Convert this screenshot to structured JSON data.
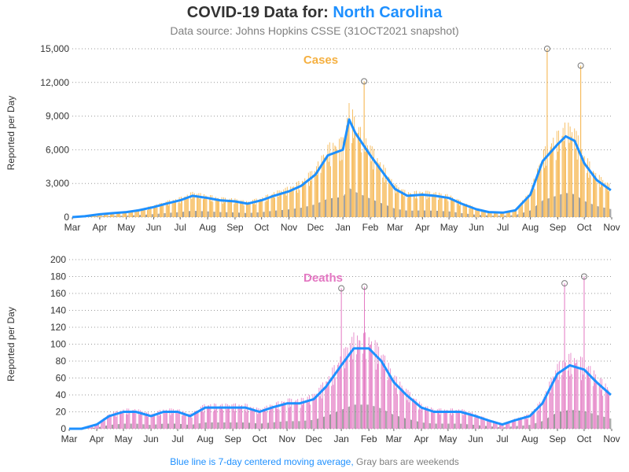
{
  "title": {
    "prefix": "COVID-19 Data for:",
    "state": "North Carolina"
  },
  "subtitle": "Data source: Johns Hopkins CSSE (31OCT2021 snapshot)",
  "footnote": {
    "blue_part": "Blue line is 7-day centered moving average,",
    "gray_part": "Gray bars are weekends"
  },
  "colors": {
    "cases": "#f5b041",
    "deaths": "#e377c2",
    "average": "#1e90ff",
    "weekend": "#808080",
    "title_text": "#333333",
    "subtitle_text": "#808080"
  },
  "chart_data": [
    {
      "type": "bar",
      "label": "Cases",
      "ylabel": "Reported per Day",
      "ylim": [
        0,
        15000
      ],
      "yticks": [
        "0",
        "3,000",
        "6,000",
        "9,000",
        "12,000",
        "15,000"
      ],
      "ytick_values": [
        0,
        3000,
        6000,
        9000,
        12000,
        15000
      ],
      "xticks": [
        "Mar",
        "Apr",
        "May",
        "Jun",
        "Jul",
        "Aug",
        "Sep",
        "Oct",
        "Nov",
        "Dec",
        "Jan",
        "Feb",
        "Mar",
        "Apr",
        "May",
        "Jun",
        "Jul",
        "Aug",
        "Sep",
        "Oct",
        "Nov"
      ],
      "grid": true,
      "x": [
        "2020-03-01",
        "2020-03-15",
        "2020-04-01",
        "2020-04-15",
        "2020-05-01",
        "2020-05-15",
        "2020-06-01",
        "2020-06-15",
        "2020-07-01",
        "2020-07-15",
        "2020-08-01",
        "2020-08-15",
        "2020-09-01",
        "2020-09-15",
        "2020-10-01",
        "2020-10-15",
        "2020-11-01",
        "2020-11-15",
        "2020-12-01",
        "2020-12-15",
        "2021-01-01",
        "2021-01-08",
        "2021-01-15",
        "2021-02-01",
        "2021-02-15",
        "2021-03-01",
        "2021-03-15",
        "2021-04-01",
        "2021-04-15",
        "2021-05-01",
        "2021-05-15",
        "2021-06-01",
        "2021-06-15",
        "2021-07-01",
        "2021-07-15",
        "2021-08-01",
        "2021-08-15",
        "2021-09-01",
        "2021-09-10",
        "2021-09-20",
        "2021-10-01",
        "2021-10-15",
        "2021-10-31"
      ],
      "moving_average": [
        0,
        80,
        250,
        350,
        450,
        600,
        900,
        1200,
        1500,
        1900,
        1700,
        1500,
        1400,
        1200,
        1500,
        1900,
        2300,
        2800,
        3800,
        5500,
        6000,
        8700,
        7500,
        5500,
        4000,
        2500,
        1900,
        2000,
        1900,
        1700,
        1200,
        700,
        450,
        400,
        600,
        2000,
        5000,
        6500,
        7200,
        6800,
        4800,
        3300,
        2400
      ],
      "notable_daily_values": [
        {
          "date": "2021-01-25",
          "value": 12100
        },
        {
          "date": "2021-08-20",
          "value": 15000
        },
        {
          "date": "2021-09-27",
          "value": 13500
        }
      ]
    },
    {
      "type": "bar",
      "label": "Deaths",
      "ylabel": "Reported per Day",
      "ylim": [
        0,
        200
      ],
      "yticks": [
        "0",
        "20",
        "40",
        "60",
        "80",
        "100",
        "120",
        "140",
        "160",
        "180",
        "200"
      ],
      "ytick_values": [
        0,
        20,
        40,
        60,
        80,
        100,
        120,
        140,
        160,
        180,
        200
      ],
      "xticks": [
        "Mar",
        "Apr",
        "May",
        "Jun",
        "Jul",
        "Aug",
        "Sep",
        "Oct",
        "Nov",
        "Dec",
        "Jan",
        "Feb",
        "Mar",
        "Apr",
        "May",
        "Jun",
        "Jul",
        "Aug",
        "Sep",
        "Oct",
        "Nov"
      ],
      "grid": true,
      "x": [
        "2020-03-01",
        "2020-03-15",
        "2020-04-01",
        "2020-04-15",
        "2020-05-01",
        "2020-05-15",
        "2020-06-01",
        "2020-06-15",
        "2020-07-01",
        "2020-07-15",
        "2020-08-01",
        "2020-08-15",
        "2020-09-01",
        "2020-09-15",
        "2020-10-01",
        "2020-10-15",
        "2020-11-01",
        "2020-11-15",
        "2020-12-01",
        "2020-12-15",
        "2021-01-01",
        "2021-01-15",
        "2021-02-01",
        "2021-02-15",
        "2021-03-01",
        "2021-03-15",
        "2021-04-01",
        "2021-04-15",
        "2021-05-01",
        "2021-05-15",
        "2021-06-01",
        "2021-06-15",
        "2021-07-01",
        "2021-07-15",
        "2021-08-01",
        "2021-08-15",
        "2021-09-01",
        "2021-09-15",
        "2021-10-01",
        "2021-10-15",
        "2021-10-31"
      ],
      "moving_average": [
        0,
        0,
        5,
        15,
        20,
        20,
        15,
        20,
        20,
        15,
        25,
        25,
        25,
        25,
        20,
        25,
        30,
        30,
        35,
        50,
        75,
        95,
        95,
        80,
        55,
        40,
        25,
        20,
        20,
        20,
        15,
        10,
        5,
        10,
        15,
        30,
        65,
        75,
        70,
        55,
        40
      ],
      "notable_daily_values": [
        {
          "date": "2021-01-01",
          "value": 166
        },
        {
          "date": "2021-01-27",
          "value": 168
        },
        {
          "date": "2021-09-09",
          "value": 172
        },
        {
          "date": "2021-10-01",
          "value": 180
        }
      ]
    }
  ]
}
